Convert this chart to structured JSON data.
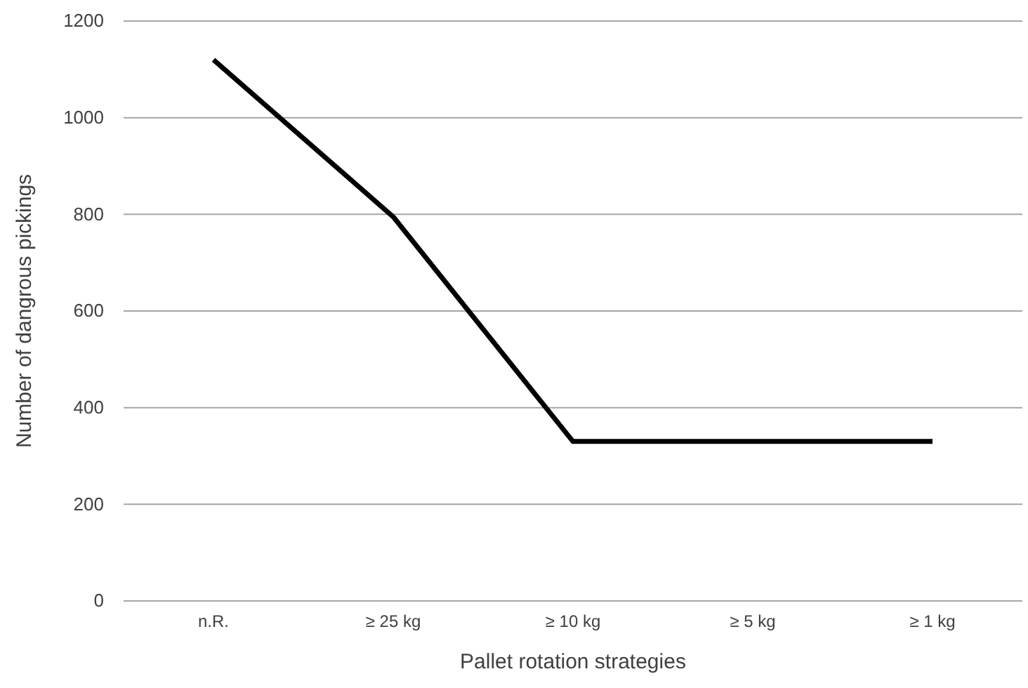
{
  "chart_data": {
    "type": "line",
    "xlabel": "Pallet rotation strategies",
    "ylabel": "Number of dangrous pickings",
    "categories": [
      "n.R.",
      "≥ 25 kg",
      "≥ 10 kg",
      "≥ 5 kg",
      "≥ 1 kg"
    ],
    "series": [
      {
        "color": "#000000",
        "values": [
          1120,
          795,
          330,
          330,
          330
        ]
      }
    ],
    "ylim": [
      0,
      1200
    ],
    "yticks": [
      0,
      200,
      400,
      600,
      800,
      1000,
      1200
    ],
    "grid": "y",
    "marker": "none",
    "line_style": "solid"
  }
}
